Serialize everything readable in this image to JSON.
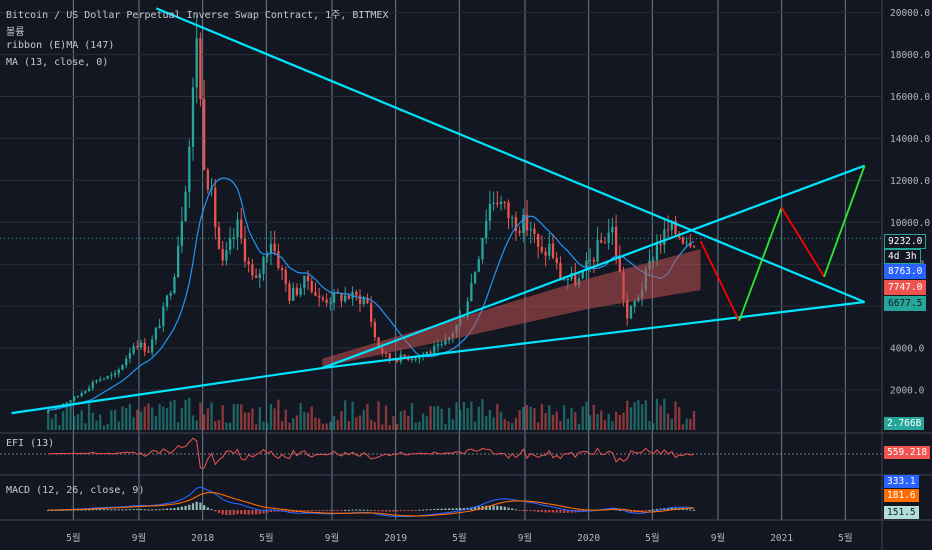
{
  "legend": {
    "title": "Bitcoin / US Dollar Perpetual Inverse Swap Contract, 1주, BITMEX",
    "line2": "볼륨",
    "line3": "ribbon (E)MA (147)",
    "line4": "MA (13, close, 0)",
    "efi": "EFI (13)",
    "macd": "MACD (12, 26, close, 9)"
  },
  "price_tags": [
    {
      "text": "9232.0",
      "value": 9232,
      "bg": "#131722",
      "fg": "#ffffff",
      "border": "#26a69a"
    },
    {
      "text": "4d 3h",
      "value": 8950,
      "bg": "#131722",
      "fg": "#ffffff",
      "border": "#26a69a"
    },
    {
      "text": "8763.0",
      "value": 8763,
      "bg": "#2962ff",
      "fg": "#ffffff",
      "border": "#2962ff"
    },
    {
      "text": "7747.0",
      "value": 7747,
      "bg": "#ef5350",
      "fg": "#ffffff",
      "border": "#ef5350"
    },
    {
      "text": "6677.5",
      "value": 6677.5,
      "bg": "#26a69a",
      "fg": "#131722",
      "border": "#26a69a"
    }
  ],
  "volume_tag": "2.766B",
  "efi_tag": "559.218",
  "macd_tags": [
    {
      "text": "333.1",
      "bg": "#2962ff",
      "fg": "#ffffff"
    },
    {
      "text": "181.6",
      "bg": "#ff6d00",
      "fg": "#ffffff"
    },
    {
      "text": "151.5",
      "bg": "#b2dfdb",
      "fg": "#131722"
    }
  ],
  "colors": {
    "background": "#131722",
    "up": "#26a69a",
    "down": "#ef5350",
    "trendline": "#00e5ff",
    "ma": "#2196f3",
    "projection_down": "#ff0000",
    "projection_up": "#2ee82e",
    "ribbon": "#c05050",
    "grid": "#a7d9e8"
  },
  "chart_data": {
    "type": "candlestick",
    "title": "Bitcoin / US Dollar Perpetual Inverse Swap Contract, 1주, BITMEX",
    "x_ticks": [
      "5월",
      "9월",
      "2018",
      "5월",
      "9월",
      "2019",
      "5월",
      "9월",
      "2020",
      "5월",
      "9월",
      "2021",
      "5월"
    ],
    "y_ticks": [
      "2000.0",
      "4000.0",
      "6000.0",
      "8000.0",
      "10000.0",
      "12000.0",
      "14000.0",
      "16000.0",
      "18000.0",
      "20000.0"
    ],
    "ylim": [
      0,
      20600
    ],
    "last_price": 9232.0,
    "price_keypoints": [
      [
        2017.2,
        1000
      ],
      [
        2017.35,
        1700
      ],
      [
        2017.45,
        2500
      ],
      [
        2017.55,
        2700
      ],
      [
        2017.65,
        4300
      ],
      [
        2017.72,
        3900
      ],
      [
        2017.8,
        5800
      ],
      [
        2017.85,
        7500
      ],
      [
        2017.9,
        11000
      ],
      [
        2017.94,
        14500
      ],
      [
        2017.97,
        19300
      ],
      [
        2018.0,
        13500
      ],
      [
        2018.04,
        11500
      ],
      [
        2018.1,
        7800
      ],
      [
        2018.18,
        9800
      ],
      [
        2018.27,
        6900
      ],
      [
        2018.35,
        9300
      ],
      [
        2018.45,
        6500
      ],
      [
        2018.55,
        7300
      ],
      [
        2018.6,
        6300
      ],
      [
        2018.75,
        6500
      ],
      [
        2018.85,
        6300
      ],
      [
        2018.9,
        4200
      ],
      [
        2018.96,
        3500
      ],
      [
        2019.1,
        3600
      ],
      [
        2019.25,
        4100
      ],
      [
        2019.35,
        5600
      ],
      [
        2019.42,
        8100
      ],
      [
        2019.48,
        10800
      ],
      [
        2019.52,
        11300
      ],
      [
        2019.6,
        10100
      ],
      [
        2019.7,
        9800
      ],
      [
        2019.75,
        8300
      ],
      [
        2019.8,
        8900
      ],
      [
        2019.85,
        7400
      ],
      [
        2019.95,
        7200
      ],
      [
        2020.05,
        8800
      ],
      [
        2020.12,
        9800
      ],
      [
        2020.2,
        5400
      ],
      [
        2020.28,
        7000
      ],
      [
        2020.35,
        8900
      ],
      [
        2020.42,
        9700
      ],
      [
        2020.5,
        9300
      ],
      [
        2020.56,
        9232
      ]
    ],
    "ma_period": 13,
    "trendlines": [
      {
        "name": "",
        "points": [
          [
            2017.76,
            20200
          ],
          [
            2021.43,
            6200
          ]
        ]
      },
      {
        "name": "",
        "points": [
          [
            2017.01,
            900
          ],
          [
            2018.62,
            3050
          ],
          [
            2021.43,
            6200
          ]
        ]
      },
      {
        "name": "",
        "points": [
          [
            2018.62,
            3050
          ],
          [
            2021.43,
            12700
          ]
        ]
      }
    ],
    "projection": [
      [
        2020.58,
        9100
      ],
      [
        2020.78,
        5300
      ],
      [
        2021.0,
        10700
      ],
      [
        2021.22,
        7400
      ],
      [
        2021.43,
        12700
      ]
    ],
    "ribbon_points": [
      [
        2018.62,
        3300
      ],
      [
        2019.3,
        4900
      ],
      [
        2020.0,
        6600
      ],
      [
        2020.58,
        7747
      ]
    ],
    "efi_last": 559.218,
    "macd_last": {
      "macd": 333.1,
      "signal": 181.6,
      "histogram": 151.5
    }
  }
}
